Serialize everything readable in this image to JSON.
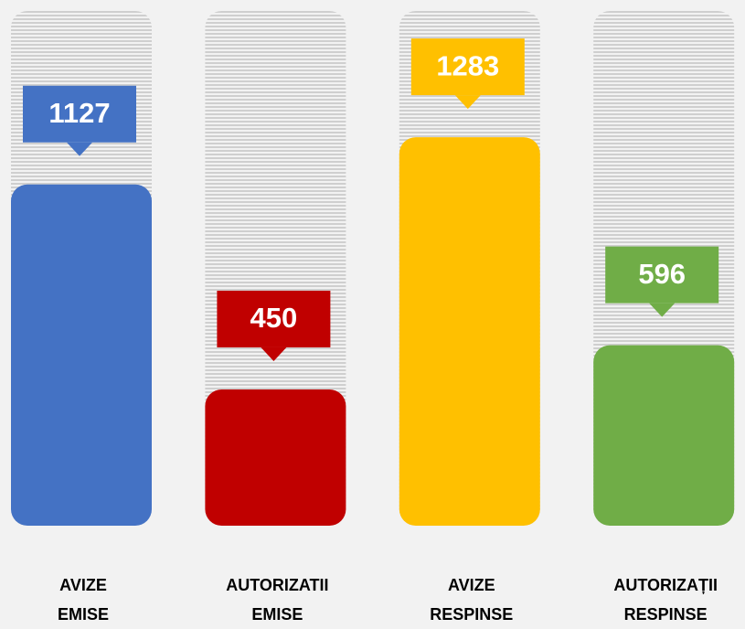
{
  "chart_data": {
    "type": "bar",
    "categories": [
      "AVIZE EMISE",
      "AUTORIZATII EMISE",
      "AVIZE RESPINSE",
      "AUTORIZAȚII RESPINSE"
    ],
    "values": [
      1127,
      450,
      1283,
      596
    ],
    "colors": [
      "#4472c4",
      "#c00000",
      "#ffc000",
      "#70ad47"
    ],
    "ylim": [
      0,
      1700
    ]
  }
}
